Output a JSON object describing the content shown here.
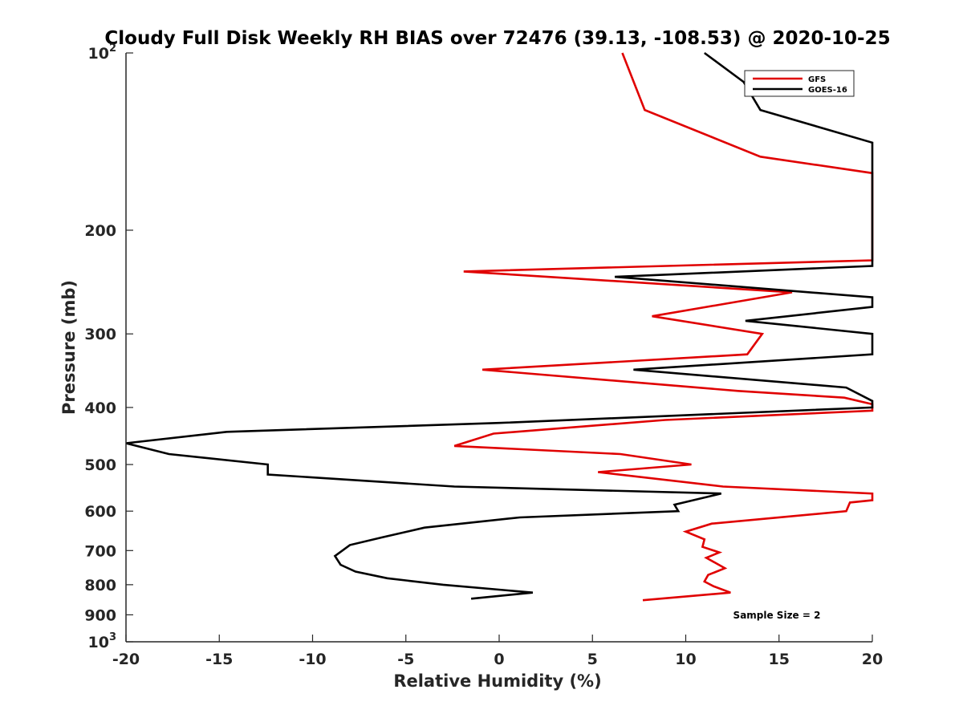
{
  "chart_data": {
    "type": "line",
    "title": "Cloudy Full Disk Weekly RH BIAS over 72476 (39.13, -108.53) @ 2020-10-25",
    "xlabel": "Relative Humidity (%)",
    "ylabel": "Pressure (mb)",
    "xlim": [
      -20,
      20
    ],
    "ylim": [
      100,
      1000
    ],
    "y_scale": "log",
    "y_reversed": true,
    "grid": false,
    "legend_position": "top-right",
    "x_ticks": [
      {
        "value": -20,
        "label": "-20"
      },
      {
        "value": -15,
        "label": "-15"
      },
      {
        "value": -10,
        "label": "-10"
      },
      {
        "value": -5,
        "label": "-5"
      },
      {
        "value": 0,
        "label": "0"
      },
      {
        "value": 5,
        "label": "5"
      },
      {
        "value": 10,
        "label": "10"
      },
      {
        "value": 15,
        "label": "15"
      },
      {
        "value": 20,
        "label": "20"
      }
    ],
    "y_ticks": [
      {
        "value": 100,
        "base": "10",
        "sup": "2"
      },
      {
        "value": 200,
        "base": "200",
        "sup": ""
      },
      {
        "value": 300,
        "base": "300",
        "sup": ""
      },
      {
        "value": 400,
        "base": "400",
        "sup": ""
      },
      {
        "value": 500,
        "base": "500",
        "sup": ""
      },
      {
        "value": 600,
        "base": "600",
        "sup": ""
      },
      {
        "value": 700,
        "base": "700",
        "sup": ""
      },
      {
        "value": 800,
        "base": "800",
        "sup": ""
      },
      {
        "value": 900,
        "base": "900",
        "sup": ""
      },
      {
        "value": 1000,
        "base": "10",
        "sup": "3"
      }
    ],
    "series": [
      {
        "name": "GFS",
        "color": "#e00000",
        "points": [
          [
            6.6,
            100
          ],
          [
            7.8,
            125
          ],
          [
            14,
            150
          ],
          [
            20,
            160
          ],
          [
            20,
            225
          ],
          [
            -1.9,
            235
          ],
          [
            15.7,
            255
          ],
          [
            8.2,
            280
          ],
          [
            14.1,
            300
          ],
          [
            13.3,
            325
          ],
          [
            -0.9,
            345
          ],
          [
            12.8,
            375
          ],
          [
            18.5,
            385
          ],
          [
            20,
            395
          ],
          [
            20,
            405
          ],
          [
            8.9,
            420
          ],
          [
            -0.3,
            443
          ],
          [
            -2.4,
            465
          ],
          [
            6.5,
            480
          ],
          [
            10.3,
            500
          ],
          [
            5.3,
            515
          ],
          [
            12,
            545
          ],
          [
            20,
            560
          ],
          [
            20,
            575
          ],
          [
            18.8,
            580
          ],
          [
            18.6,
            600
          ],
          [
            11.4,
            630
          ],
          [
            10,
            650
          ],
          [
            11,
            670
          ],
          [
            10.9,
            690
          ],
          [
            11.8,
            705
          ],
          [
            11.1,
            720
          ],
          [
            12.1,
            750
          ],
          [
            11.2,
            770
          ],
          [
            11.0,
            790
          ],
          [
            11.5,
            805
          ],
          [
            12.4,
            825
          ],
          [
            7.7,
            850
          ]
        ]
      },
      {
        "name": "GOES-16",
        "color": "#000000",
        "points": [
          [
            11,
            100
          ],
          [
            13.1,
            112
          ],
          [
            14,
            125
          ],
          [
            20,
            142
          ],
          [
            20,
            230
          ],
          [
            6.2,
            240
          ],
          [
            20,
            260
          ],
          [
            20,
            270
          ],
          [
            13.2,
            285
          ],
          [
            20,
            300
          ],
          [
            20,
            325
          ],
          [
            7.2,
            345
          ],
          [
            18.6,
            370
          ],
          [
            20,
            390
          ],
          [
            20,
            400
          ],
          [
            0,
            425
          ],
          [
            -14.6,
            440
          ],
          [
            -20,
            460
          ],
          [
            -17.7,
            480
          ],
          [
            -12.4,
            500
          ],
          [
            -12.4,
            520
          ],
          [
            -2.4,
            545
          ],
          [
            11.9,
            560
          ],
          [
            9.4,
            585
          ],
          [
            9.6,
            600
          ],
          [
            1.1,
            615
          ],
          [
            -4,
            640
          ],
          [
            -6.3,
            665
          ],
          [
            -8,
            685
          ],
          [
            -8.8,
            715
          ],
          [
            -8.5,
            740
          ],
          [
            -7.7,
            760
          ],
          [
            -6,
            780
          ],
          [
            -3,
            800
          ],
          [
            1.8,
            825
          ],
          [
            -1.5,
            845
          ]
        ]
      }
    ],
    "annotations": [
      {
        "text": "Sample Size = 2"
      }
    ]
  }
}
